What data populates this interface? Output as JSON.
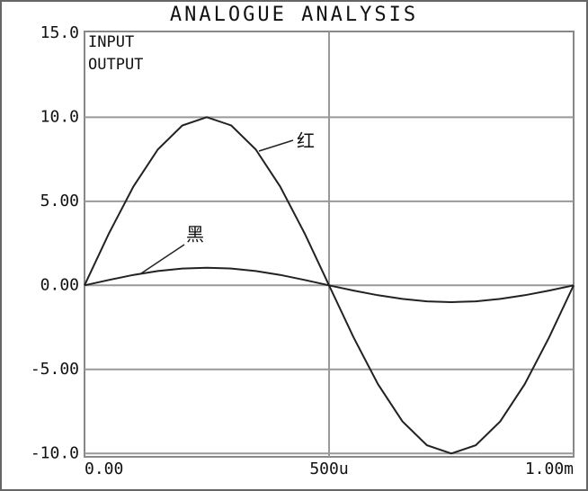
{
  "chart_data": {
    "type": "line",
    "title": "ANALOGUE ANALYSIS",
    "x": [
      0,
      5e-05,
      0.0001,
      0.00015,
      0.0002,
      0.00025,
      0.0003,
      0.00035,
      0.0004,
      0.00045,
      0.0005,
      0.00055,
      0.0006,
      0.00065,
      0.0007,
      0.00075,
      0.0008,
      0.00085,
      0.0009,
      0.00095,
      0.001
    ],
    "series": [
      {
        "name": "INPUT",
        "color": "#222222",
        "values": [
          0,
          3.09,
          5.88,
          8.09,
          9.51,
          10,
          9.51,
          8.09,
          5.88,
          3.09,
          0,
          -3.09,
          -5.88,
          -8.09,
          -9.51,
          -10,
          -9.51,
          -8.09,
          -5.88,
          -3.09,
          0
        ]
      },
      {
        "name": "OUTPUT",
        "color": "#222222",
        "values": [
          0,
          0.32,
          0.62,
          0.85,
          1.0,
          1.05,
          1.0,
          0.85,
          0.62,
          0.32,
          0,
          -0.31,
          -0.59,
          -0.81,
          -0.95,
          -1.0,
          -0.95,
          -0.81,
          -0.59,
          -0.31,
          0
        ]
      }
    ],
    "annotations": [
      "红",
      "黑"
    ],
    "xlim": [
      0,
      0.001
    ],
    "xticks": [
      {
        "value": 0,
        "label": "0.00"
      },
      {
        "value": 0.0005,
        "label": "500u"
      },
      {
        "value": 0.001,
        "label": "1.00m"
      }
    ],
    "ylim": [
      -10.2,
      15.1
    ],
    "yticks": [
      {
        "value": -10,
        "label": "-10.0"
      },
      {
        "value": -5,
        "label": "-5.00"
      },
      {
        "value": 0,
        "label": "0.00"
      },
      {
        "value": 5,
        "label": "5.00"
      },
      {
        "value": 10,
        "label": "10.0"
      },
      {
        "value": 15,
        "label": "15.0"
      }
    ],
    "grid": true
  }
}
